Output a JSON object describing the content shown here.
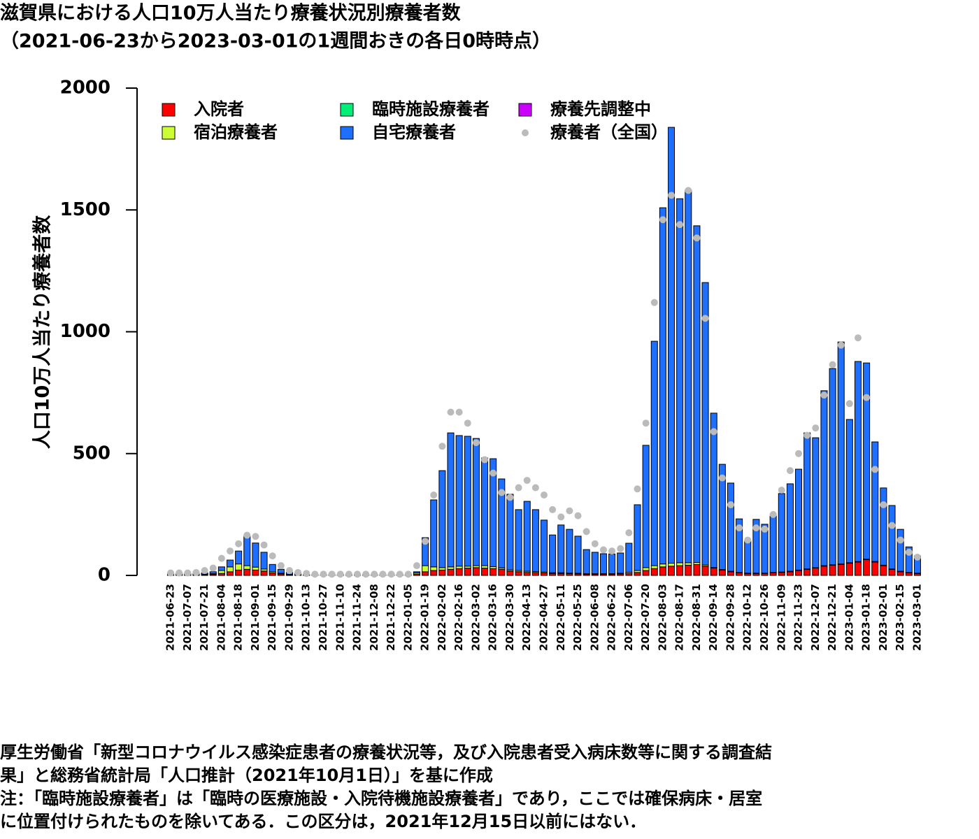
{
  "chart_data": {
    "type": "bar",
    "stacked": true,
    "title": "滋賀県における人口10万人当たり療養状況別療養者数",
    "subtitle": "（2021-06-23から2023-03-01の1週間おきの各日0時時点）",
    "y_label": "人口10万人当たり療養者数",
    "notes": [
      "厚生労働省「新型コロナウイルス感染症患者の療養状況等，及び入院患者受入病床数等に関する調査結",
      "果」と総務省統計局「人口推計（2021年10月1日）」を基に作成",
      "注：「臨時施設療養者」は「臨時の医療施設・入院待機施設療養者」であり，ここでは確保病床・居室",
      "に位置付けられたものを除いてある．この区分は，2021年12月15日以前にはない．"
    ],
    "categories": [
      "2021-06-23",
      null,
      "2021-07-07",
      null,
      "2021-07-21",
      null,
      "2021-08-04",
      null,
      "2021-08-18",
      null,
      "2021-09-01",
      null,
      "2021-09-15",
      null,
      "2021-09-29",
      null,
      "2021-10-13",
      null,
      "2021-10-27",
      null,
      "2021-11-10",
      null,
      "2021-11-24",
      null,
      "2021-12-08",
      null,
      "2021-12-22",
      null,
      "2022-01-05",
      null,
      "2022-01-19",
      null,
      "2022-02-02",
      null,
      "2022-02-16",
      null,
      "2022-03-02",
      null,
      "2022-03-16",
      null,
      "2022-03-30",
      null,
      "2022-04-13",
      null,
      "2022-04-27",
      null,
      "2022-05-11",
      null,
      "2022-05-25",
      null,
      "2022-06-08",
      null,
      "2022-06-22",
      null,
      "2022-07-06",
      null,
      "2022-07-20",
      null,
      "2022-08-03",
      null,
      "2022-08-17",
      null,
      "2022-08-31",
      null,
      "2022-09-14",
      null,
      "2022-09-28",
      null,
      "2022-10-12",
      null,
      "2022-10-26",
      null,
      "2022-11-09",
      null,
      "2022-11-23",
      null,
      "2022-12-07",
      null,
      "2022-12-21",
      null,
      "2023-01-04",
      null,
      "2023-01-18",
      null,
      "2023-02-01",
      null,
      "2023-02-15",
      null,
      "2023-03-01"
    ],
    "series": [
      {
        "name": "入院者",
        "color": "#ff0000",
        "values": [
          2,
          2,
          2,
          2,
          3,
          4,
          8,
          15,
          22,
          25,
          22,
          18,
          10,
          6,
          3,
          2,
          1,
          1,
          1,
          1,
          1,
          1,
          1,
          1,
          1,
          1,
          1,
          1,
          1,
          5,
          15,
          20,
          22,
          25,
          28,
          30,
          32,
          30,
          28,
          25,
          18,
          15,
          12,
          12,
          10,
          8,
          8,
          7,
          6,
          5,
          5,
          5,
          5,
          6,
          8,
          12,
          20,
          28,
          35,
          38,
          40,
          42,
          45,
          38,
          30,
          22,
          15,
          10,
          8,
          8,
          8,
          10,
          12,
          15,
          20,
          25,
          30,
          38,
          42,
          45,
          50,
          55,
          65,
          55,
          40,
          25,
          15,
          10,
          8
        ]
      },
      {
        "name": "宿泊療養者",
        "color": "#ccff33",
        "values": [
          1,
          1,
          1,
          1,
          2,
          3,
          12,
          20,
          25,
          15,
          12,
          8,
          5,
          3,
          1,
          1,
          0,
          0,
          0,
          0,
          0,
          0,
          0,
          0,
          0,
          0,
          0,
          0,
          0,
          5,
          25,
          15,
          10,
          10,
          10,
          8,
          8,
          10,
          8,
          6,
          5,
          5,
          5,
          4,
          4,
          3,
          3,
          3,
          3,
          2,
          2,
          2,
          2,
          3,
          5,
          8,
          12,
          12,
          12,
          12,
          12,
          10,
          8,
          5,
          3,
          2,
          2,
          2,
          2,
          2,
          2,
          2,
          2,
          2,
          2,
          2,
          2,
          2,
          2,
          2,
          2,
          2,
          2,
          2,
          2,
          2,
          2,
          2,
          2
        ]
      },
      {
        "name": "臨時施設療養者",
        "color": "#00ee77",
        "values": [
          0,
          0,
          0,
          0,
          0,
          0,
          0,
          0,
          0,
          0,
          0,
          0,
          0,
          0,
          0,
          0,
          0,
          0,
          0,
          0,
          0,
          0,
          0,
          0,
          0,
          0,
          0,
          0,
          0,
          0,
          0,
          0,
          0,
          0,
          0,
          0,
          0,
          0,
          0,
          0,
          0,
          0,
          0,
          0,
          0,
          0,
          0,
          0,
          0,
          0,
          0,
          0,
          0,
          0,
          0,
          0,
          0,
          0,
          0,
          0,
          0,
          0,
          0,
          0,
          0,
          0,
          0,
          0,
          0,
          0,
          0,
          0,
          0,
          0,
          0,
          0,
          0,
          0,
          0,
          0,
          0,
          0,
          0,
          0,
          0,
          0,
          0,
          0,
          0
        ]
      },
      {
        "name": "自宅療養者",
        "color": "#1f6fff",
        "values": [
          5,
          5,
          5,
          5,
          5,
          8,
          15,
          28,
          53,
          121,
          99,
          69,
          30,
          16,
          8,
          5,
          2,
          2,
          2,
          2,
          2,
          2,
          2,
          2,
          2,
          2,
          2,
          2,
          2,
          5,
          115,
          275,
          398,
          550,
          536,
          533,
          522,
          442,
          443,
          365,
          310,
          250,
          287,
          254,
          213,
          155,
          196,
          179,
          152,
          99,
          88,
          82,
          81,
          83,
          119,
          270,
          502,
          921,
          1462,
          1789,
          1494,
          1529,
          1382,
          1159,
          633,
          432,
          362,
          220,
          131,
          220,
          200,
          232,
          322,
          359,
          414,
          558,
          533,
          718,
          805,
          911,
          588,
          821,
          805,
          491,
          317,
          260,
          172,
          105,
          70
        ]
      },
      {
        "name": "療養先調整中",
        "color": "#cc00ff",
        "values": [
          0,
          0,
          0,
          0,
          0,
          0,
          0,
          0,
          0,
          0,
          0,
          0,
          0,
          0,
          0,
          0,
          0,
          0,
          0,
          0,
          0,
          0,
          0,
          0,
          0,
          0,
          0,
          0,
          0,
          0,
          0,
          0,
          0,
          0,
          0,
          0,
          0,
          0,
          0,
          0,
          0,
          0,
          0,
          0,
          0,
          0,
          0,
          0,
          0,
          0,
          0,
          0,
          0,
          0,
          0,
          0,
          0,
          0,
          0,
          0,
          0,
          0,
          0,
          0,
          0,
          0,
          0,
          0,
          0,
          0,
          0,
          0,
          0,
          0,
          0,
          0,
          0,
          0,
          0,
          0,
          0,
          0,
          0,
          0,
          0,
          0,
          0,
          0,
          0
        ]
      },
      {
        "name": "療養者（全国）",
        "type": "scatter",
        "color": "#bbbbbb",
        "values": [
          10,
          10,
          10,
          12,
          20,
          30,
          70,
          100,
          130,
          165,
          160,
          125,
          80,
          40,
          20,
          12,
          8,
          5,
          5,
          5,
          5,
          5,
          5,
          5,
          5,
          5,
          5,
          5,
          5,
          40,
          140,
          330,
          530,
          670,
          670,
          625,
          545,
          475,
          420,
          340,
          320,
          360,
          390,
          360,
          330,
          270,
          240,
          265,
          245,
          180,
          130,
          105,
          100,
          110,
          175,
          355,
          625,
          1120,
          1460,
          1560,
          1440,
          1580,
          1385,
          1055,
          590,
          400,
          290,
          195,
          145,
          195,
          190,
          250,
          350,
          430,
          500,
          575,
          605,
          740,
          865,
          945,
          705,
          975,
          730,
          435,
          290,
          205,
          145,
          95,
          75
        ]
      }
    ],
    "ylim": [
      0,
      2000
    ],
    "yticks": [
      0,
      500,
      1000,
      1500,
      2000
    ]
  }
}
